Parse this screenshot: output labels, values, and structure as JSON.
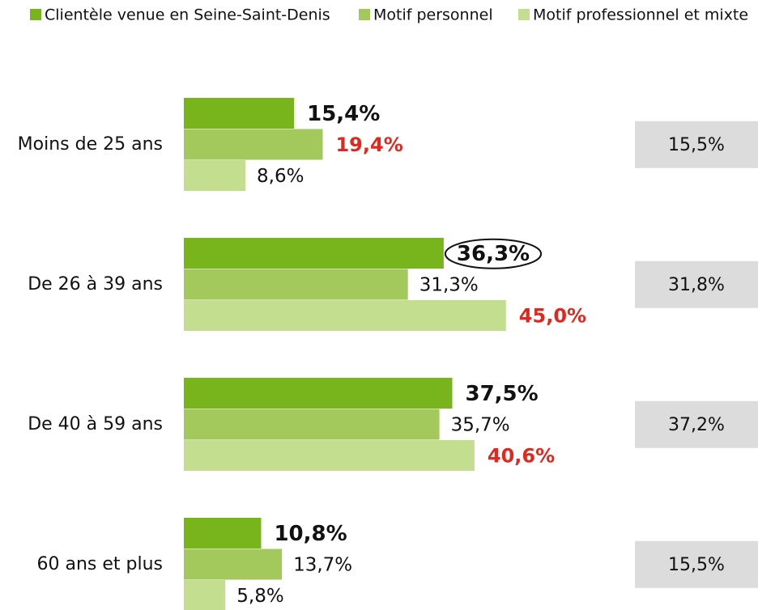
{
  "chart_data": {
    "type": "bar",
    "orientation": "horizontal",
    "categories": [
      "Moins de 25 ans",
      "De 26 à 39 ans",
      "De 40 à 59 ans",
      "60 ans et plus"
    ],
    "series": [
      {
        "name": "Clientèle venue en Seine-Saint-Denis",
        "color": "#78b41c",
        "values": [
          15.4,
          36.3,
          37.5,
          10.8
        ],
        "value_labels": [
          "15,4%",
          "36,3%",
          "37,5%",
          "10,8%"
        ]
      },
      {
        "name": "Motif personnel",
        "color": "#a3c95c",
        "values": [
          19.4,
          31.3,
          35.7,
          13.7
        ],
        "value_labels": [
          "19,4%",
          "31,3%",
          "35,7%",
          "13,7%"
        ]
      },
      {
        "name": "Motif professionnel et mixte",
        "color": "#c4de8f",
        "values": [
          8.6,
          45.0,
          40.6,
          5.8
        ],
        "value_labels": [
          "8,6%",
          "45,0%",
          "40,6%",
          "5,8%"
        ]
      }
    ],
    "totals": {
      "values": [
        15.5,
        31.8,
        37.2,
        15.5
      ],
      "value_labels": [
        "15,5%",
        "31,8%",
        "37,2%",
        "15,5%"
      ],
      "color": "#dcdcdc"
    }
  }
}
